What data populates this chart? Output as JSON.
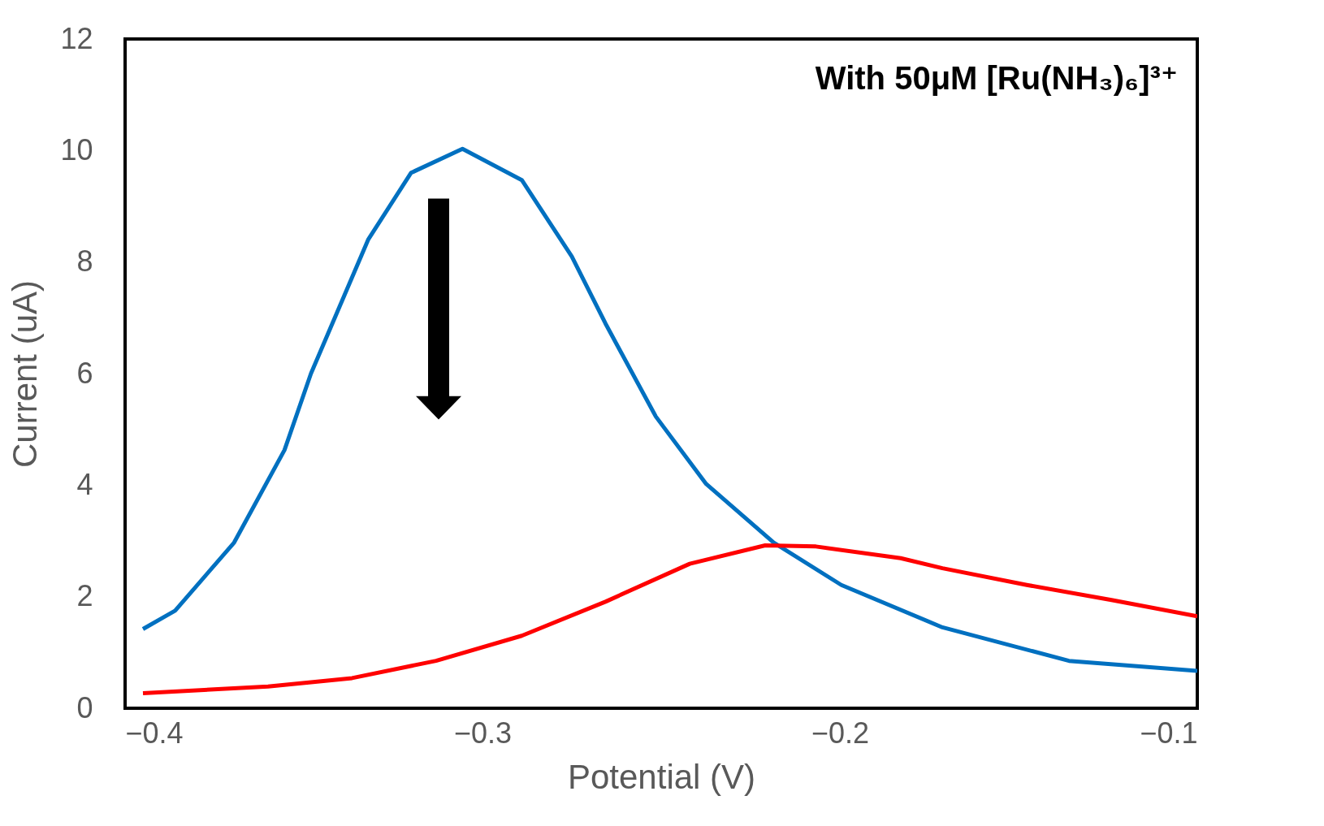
{
  "chart_data": {
    "type": "line",
    "xlabel": "Potential (V)",
    "ylabel": "Current (uA)",
    "annotations": [
      "With 50μM [Ru(NH₃)₆]³⁺"
    ],
    "xlim": [
      -0.4,
      -0.1
    ],
    "xticks": [
      -0.4,
      -0.3,
      -0.2,
      -0.1
    ],
    "ylim": [
      0,
      12
    ],
    "yticks": [
      0,
      2,
      4,
      6,
      8,
      10,
      12
    ],
    "grid": false,
    "legend": false,
    "series": [
      {
        "color": "#0070c0",
        "x": [
          -0.395,
          -0.386,
          -0.3695,
          -0.3554,
          -0.348,
          -0.332,
          -0.32,
          -0.3056,
          -0.289,
          -0.275,
          -0.2656,
          -0.2515,
          -0.2374,
          -0.2185,
          -0.1996,
          -0.1713,
          -0.1359,
          -0.1
        ],
        "values": [
          1.42,
          1.75,
          2.97,
          4.63,
          6.0,
          8.4,
          9.6,
          10.03,
          9.47,
          8.1,
          6.9,
          5.23,
          4.02,
          2.97,
          2.21,
          1.45,
          0.85,
          0.67
        ]
      },
      {
        "color": "#ff0000",
        "x": [
          -0.395,
          -0.36,
          -0.3365,
          -0.313,
          -0.289,
          -0.2656,
          -0.242,
          -0.2209,
          -0.2067,
          -0.183,
          -0.1713,
          -0.1477,
          -0.124,
          -0.1
        ],
        "values": [
          0.27,
          0.39,
          0.54,
          0.85,
          1.3,
          1.91,
          2.59,
          2.92,
          2.9,
          2.69,
          2.51,
          2.21,
          1.94,
          1.65
        ]
      }
    ]
  }
}
